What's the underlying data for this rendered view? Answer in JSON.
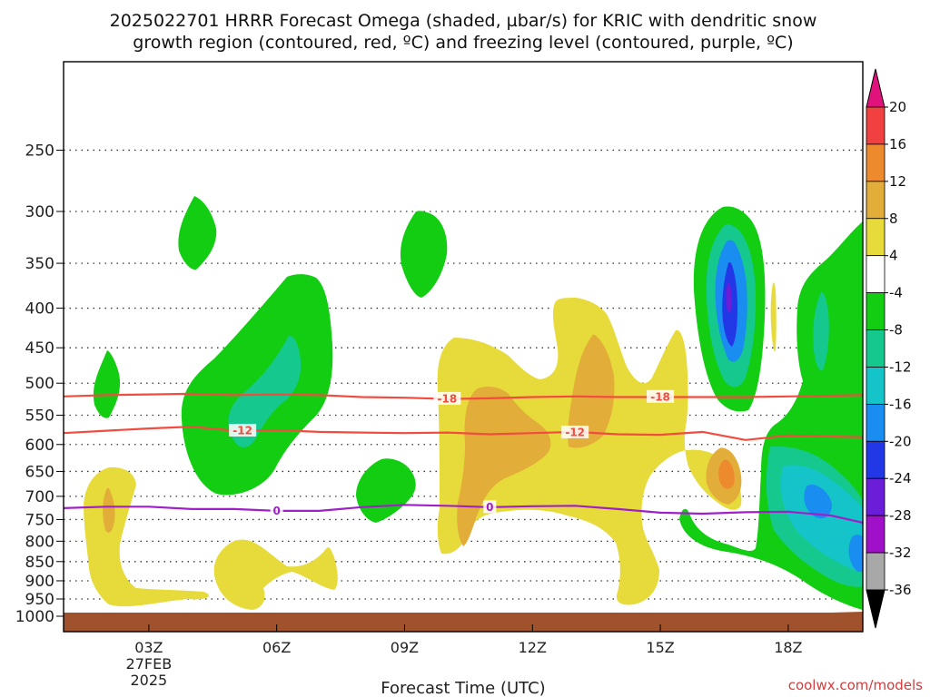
{
  "header": {
    "title_line1": "2025022701 HRRR Forecast Omega (shaded, µbar/s) for KRIC with dendritic snow",
    "title_line2": "growth region (contoured, red, ºC) and freezing level (contoured, purple, ºC)"
  },
  "footer": {
    "xlabel": "Forecast Time (UTC)",
    "credit": "coolwx.com/models"
  },
  "chart_data": {
    "type": "heatmap",
    "title": "2025022701 HRRR Forecast Omega (shaded, µbar/s) for KRIC with dendritic snow growth region (contoured, red, ºC) and freezing level (contoured, purple, ºC)",
    "xlabel": "Forecast Time (UTC)",
    "ylabel": "",
    "x_range_hours_utc": [
      1,
      19.75
    ],
    "y_axis": {
      "quantity": "pressure (hPa)",
      "range": [
        1000,
        200
      ],
      "log_scale": true,
      "inverted": true
    },
    "x_ticks": [
      {
        "hour": 3,
        "label": "03Z",
        "sub1": "27FEB",
        "sub2": "2025"
      },
      {
        "hour": 6,
        "label": "06Z"
      },
      {
        "hour": 9,
        "label": "09Z"
      },
      {
        "hour": 12,
        "label": "12Z"
      },
      {
        "hour": 15,
        "label": "15Z"
      },
      {
        "hour": 18,
        "label": "18Z"
      }
    ],
    "y_ticks": [
      250,
      300,
      350,
      400,
      450,
      500,
      550,
      600,
      650,
      700,
      750,
      800,
      850,
      900,
      950,
      1000
    ],
    "grid": "dotted horizontal lines at each pressure tick",
    "terrain_color": "#a0522d",
    "colorbar": {
      "tick_labels": [
        "20",
        "16",
        "12",
        "8",
        "4",
        "-4",
        "-8",
        "-12",
        "-16",
        "-20",
        "-24",
        "-28",
        "-32",
        "-36"
      ],
      "bins": [
        {
          "from": 20,
          "to": null,
          "color": "#e0127c"
        },
        {
          "from": 16,
          "to": 20,
          "color": "#f04040"
        },
        {
          "from": 12,
          "to": 16,
          "color": "#ee8a2e"
        },
        {
          "from": 8,
          "to": 12,
          "color": "#e2ad38"
        },
        {
          "from": 4,
          "to": 8,
          "color": "#e6db3b"
        },
        {
          "from": -4,
          "to": 4,
          "color": "#ffffff"
        },
        {
          "from": -8,
          "to": -4,
          "color": "#12cd12"
        },
        {
          "from": -12,
          "to": -8,
          "color": "#15c98e"
        },
        {
          "from": -16,
          "to": -12,
          "color": "#14c4c8"
        },
        {
          "from": -20,
          "to": -16,
          "color": "#1a8ef0"
        },
        {
          "from": -24,
          "to": -20,
          "color": "#2238e6"
        },
        {
          "from": -28,
          "to": -24,
          "color": "#6a1ed8"
        },
        {
          "from": -32,
          "to": -28,
          "color": "#a010c8"
        },
        {
          "from": -36,
          "to": -32,
          "color": "#a8a8a8"
        },
        {
          "from": null,
          "to": -36,
          "color": "#000000"
        }
      ]
    },
    "contours": [
      {
        "name": "-18",
        "color": "#f24b3f",
        "points": [
          [
            1,
            520
          ],
          [
            2,
            518
          ],
          [
            3,
            517
          ],
          [
            4,
            516
          ],
          [
            5,
            518
          ],
          [
            6,
            517
          ],
          [
            7,
            518
          ],
          [
            8,
            521
          ],
          [
            9,
            522
          ],
          [
            10,
            524
          ],
          [
            11,
            523
          ],
          [
            12,
            521
          ],
          [
            13,
            520
          ],
          [
            14,
            521
          ],
          [
            15,
            521
          ],
          [
            16,
            521
          ],
          [
            17,
            521
          ],
          [
            18,
            520
          ],
          [
            19,
            519
          ],
          [
            19.75,
            518
          ]
        ],
        "labels": [
          [
            10,
            523
          ],
          [
            15,
            520
          ]
        ]
      },
      {
        "name": "-12",
        "color": "#f24b3f",
        "points": [
          [
            1,
            580
          ],
          [
            2,
            576
          ],
          [
            3,
            572
          ],
          [
            4,
            569
          ],
          [
            5,
            576
          ],
          [
            6,
            575
          ],
          [
            7,
            578
          ],
          [
            8,
            579
          ],
          [
            9,
            580
          ],
          [
            10,
            579
          ],
          [
            11,
            582
          ],
          [
            12,
            580
          ],
          [
            13,
            578
          ],
          [
            14,
            582
          ],
          [
            15,
            583
          ],
          [
            16,
            578
          ],
          [
            17,
            592
          ],
          [
            18,
            584
          ],
          [
            19,
            586
          ],
          [
            19.75,
            587
          ]
        ],
        "labels": [
          [
            5.2,
            575
          ],
          [
            13,
            578
          ]
        ]
      },
      {
        "name": "0",
        "color": "#a020c8",
        "points": [
          [
            1,
            725
          ],
          [
            2,
            722
          ],
          [
            3,
            722
          ],
          [
            4,
            727
          ],
          [
            5,
            727
          ],
          [
            6,
            731
          ],
          [
            7,
            731
          ],
          [
            8,
            723
          ],
          [
            9,
            718
          ],
          [
            10,
            720
          ],
          [
            11,
            723
          ],
          [
            12,
            721
          ],
          [
            13,
            720
          ],
          [
            14,
            727
          ],
          [
            15,
            735
          ],
          [
            16,
            737
          ],
          [
            17,
            734
          ],
          [
            18,
            733
          ],
          [
            19,
            741
          ],
          [
            19.75,
            757
          ]
        ],
        "labels": [
          [
            6,
            730
          ],
          [
            11,
            722
          ]
        ]
      }
    ]
  }
}
